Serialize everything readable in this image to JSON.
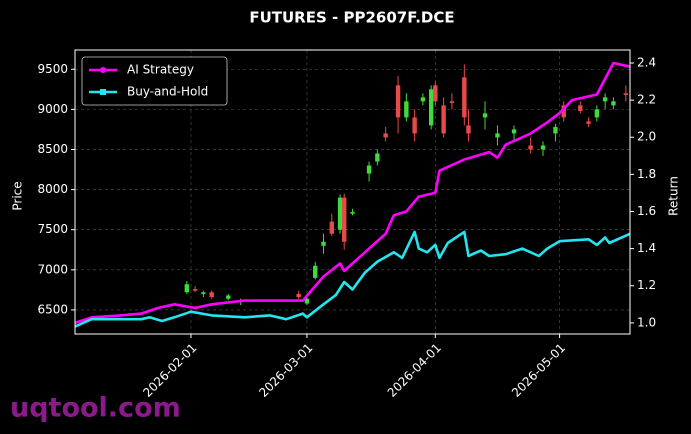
{
  "chart_data": {
    "type": "candlestick",
    "title": "FUTURES - PP2607F.DCE",
    "ylabel": "Price",
    "y2label": "Return",
    "watermark": "uqtool.com",
    "grid": true,
    "legend": "upper left",
    "up_color": "#3ddc3d",
    "down_color": "#e84a4a",
    "xlim": [
      "2026-01-04",
      "2026-05-18"
    ],
    "xticks": [
      "2026-02-01",
      "2026-03-01",
      "2026-04-01",
      "2026-05-01"
    ],
    "ylim": [
      6200,
      9740
    ],
    "yticks": [
      6500,
      7000,
      7500,
      8000,
      8500,
      9000,
      9500
    ],
    "y2lim": [
      0.94,
      2.47
    ],
    "y2ticks": [
      {
        "value": 1,
        "label": "1.0"
      },
      1.2,
      1.4,
      1.6,
      1.8,
      {
        "value": 2,
        "label": "2.0"
      },
      2.2,
      2.4
    ],
    "candles": {
      "x": [
        "2026-01-31",
        "2026-02-02",
        "2026-02-04",
        "2026-02-06",
        "2026-02-10",
        "2026-02-13",
        "2026-02-27",
        "2026-03-01",
        "2026-03-03",
        "2026-03-05",
        "2026-03-07",
        "2026-03-09",
        "2026-03-10",
        "2026-03-12",
        "2026-03-16",
        "2026-03-18",
        "2026-03-20",
        "2026-03-23",
        "2026-03-25",
        "2026-03-27",
        "2026-03-29",
        "2026-03-31",
        "2026-04-01",
        "2026-04-03",
        "2026-04-05",
        "2026-04-08",
        "2026-04-09",
        "2026-04-13",
        "2026-04-16",
        "2026-04-20",
        "2026-04-24",
        "2026-04-27",
        "2026-04-30",
        "2026-05-02",
        "2026-05-06",
        "2026-05-08",
        "2026-05-10",
        "2026-05-12",
        "2026-05-14",
        "2026-05-17"
      ],
      "open": [
        6720,
        6760,
        6700,
        6720,
        6640,
        6600,
        6700,
        6580,
        6900,
        7300,
        7600,
        7500,
        7900,
        7700,
        8200,
        8350,
        8700,
        9300,
        8900,
        8900,
        9100,
        8800,
        9300,
        9050,
        9100,
        9400,
        8800,
        8900,
        8650,
        8700,
        8550,
        8500,
        8700,
        9050,
        9050,
        8850,
        8900,
        9100,
        9050,
        9200
      ],
      "high": [
        6860,
        6800,
        6740,
        6740,
        6700,
        6640,
        6740,
        6660,
        7100,
        7450,
        7700,
        7940,
        7950,
        7760,
        8350,
        8500,
        8780,
        9420,
        9200,
        9000,
        9200,
        9300,
        9350,
        9150,
        9200,
        9560,
        9000,
        9100,
        8800,
        8800,
        8650,
        8600,
        8820,
        9100,
        9100,
        8900,
        9050,
        9200,
        9150,
        9300
      ],
      "low": [
        6700,
        6720,
        6660,
        6640,
        6620,
        6560,
        6640,
        6560,
        6880,
        7200,
        7420,
        7450,
        7250,
        7680,
        8100,
        8300,
        8600,
        8700,
        8850,
        8600,
        9050,
        8750,
        9050,
        8650,
        9000,
        8800,
        8600,
        8750,
        8550,
        8600,
        8450,
        8420,
        8600,
        8850,
        8950,
        8780,
        8850,
        9000,
        9000,
        9100
      ],
      "close": [
        6820,
        6740,
        6720,
        6660,
        6680,
        6620,
        6660,
        6640,
        7050,
        7350,
        7450,
        7900,
        7350,
        7720,
        8300,
        8450,
        8650,
        8900,
        9100,
        8700,
        9150,
        9250,
        9100,
        8700,
        9080,
        8900,
        8700,
        8950,
        8700,
        8750,
        8500,
        8550,
        8780,
        8900,
        8980,
        8820,
        9000,
        9150,
        9100,
        9180
      ]
    },
    "series": [
      {
        "name": "AI Strategy",
        "color": "#ff00ff",
        "axis": "y2",
        "x": [
          "2026-01-04",
          "2026-01-08",
          "2026-01-15",
          "2026-01-20",
          "2026-01-24",
          "2026-01-28",
          "2026-02-02",
          "2026-02-06",
          "2026-02-14",
          "2026-02-28",
          "2026-03-05",
          "2026-03-09",
          "2026-03-10",
          "2026-03-15",
          "2026-03-20",
          "2026-03-22",
          "2026-03-25",
          "2026-03-28",
          "2026-04-01",
          "2026-04-02",
          "2026-04-08",
          "2026-04-14",
          "2026-04-16",
          "2026-04-18",
          "2026-04-24",
          "2026-04-28",
          "2026-05-01",
          "2026-05-04",
          "2026-05-10",
          "2026-05-14",
          "2026-05-18"
        ],
        "values": [
          1.0,
          1.03,
          1.04,
          1.05,
          1.08,
          1.1,
          1.08,
          1.1,
          1.12,
          1.12,
          1.25,
          1.32,
          1.28,
          1.38,
          1.48,
          1.58,
          1.6,
          1.68,
          1.7,
          1.82,
          1.88,
          1.92,
          1.89,
          1.96,
          2.02,
          2.08,
          2.13,
          2.2,
          2.23,
          2.4,
          2.38
        ]
      },
      {
        "name": "Buy-and-Hold",
        "color": "#22e5f0",
        "axis": "y2",
        "x": [
          "2026-01-04",
          "2026-01-08",
          "2026-01-20",
          "2026-01-22",
          "2026-01-25",
          "2026-01-28",
          "2026-02-01",
          "2026-02-06",
          "2026-02-14",
          "2026-02-20",
          "2026-02-24",
          "2026-02-28",
          "2026-03-01",
          "2026-03-05",
          "2026-03-08",
          "2026-03-10",
          "2026-03-12",
          "2026-03-15",
          "2026-03-18",
          "2026-03-22",
          "2026-03-24",
          "2026-03-27",
          "2026-03-28",
          "2026-03-30",
          "2026-04-01",
          "2026-04-02",
          "2026-04-04",
          "2026-04-08",
          "2026-04-09",
          "2026-04-12",
          "2026-04-14",
          "2026-04-18",
          "2026-04-22",
          "2026-04-26",
          "2026-04-28",
          "2026-05-01",
          "2026-05-08",
          "2026-05-10",
          "2026-05-12",
          "2026-05-13",
          "2026-05-18"
        ],
        "values": [
          0.98,
          1.02,
          1.02,
          1.03,
          1.01,
          1.03,
          1.06,
          1.04,
          1.03,
          1.04,
          1.02,
          1.05,
          1.03,
          1.1,
          1.15,
          1.22,
          1.18,
          1.27,
          1.33,
          1.38,
          1.35,
          1.49,
          1.4,
          1.38,
          1.42,
          1.35,
          1.43,
          1.49,
          1.36,
          1.39,
          1.36,
          1.37,
          1.4,
          1.36,
          1.4,
          1.44,
          1.45,
          1.42,
          1.46,
          1.43,
          1.48
        ]
      }
    ]
  }
}
